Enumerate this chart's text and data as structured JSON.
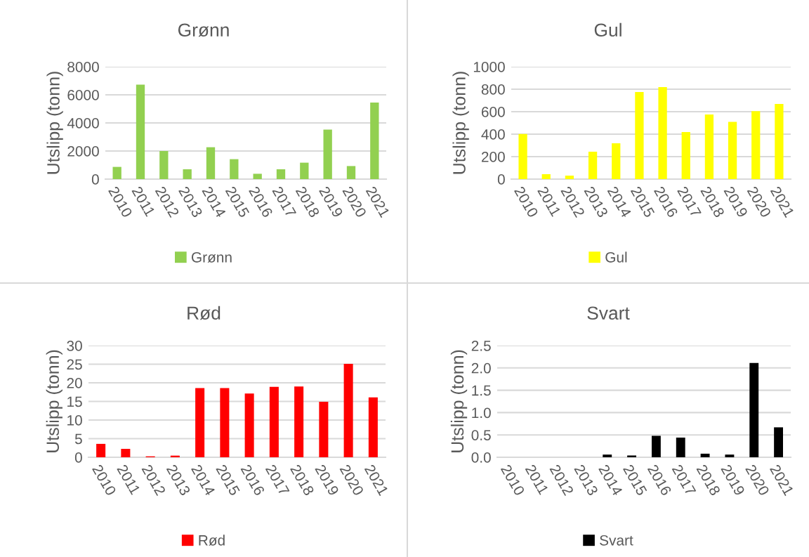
{
  "chart_data": [
    {
      "type": "bar",
      "title": "Grønn",
      "ylabel": "Utslipp (tonn)",
      "categories": [
        "2010",
        "2011",
        "2012",
        "2013",
        "2014",
        "2015",
        "2016",
        "2017",
        "2018",
        "2019",
        "2020",
        "2021"
      ],
      "series": [
        {
          "name": "Grønn",
          "color": "#92d050",
          "values": [
            870,
            6730,
            2000,
            700,
            2270,
            1420,
            380,
            700,
            1170,
            3530,
            930,
            5450
          ]
        }
      ],
      "ylim": [
        0,
        8000
      ],
      "yticks": [
        0,
        2000,
        4000,
        6000,
        8000
      ],
      "grid": "y",
      "legend": "bottom"
    },
    {
      "type": "bar",
      "title": "Gul",
      "ylabel": "Utslipp (tonn)",
      "categories": [
        "2010",
        "2011",
        "2012",
        "2013",
        "2014",
        "2015",
        "2016",
        "2017",
        "2018",
        "2019",
        "2020",
        "2021"
      ],
      "series": [
        {
          "name": "Gul",
          "color": "#ffff00",
          "values": [
            402,
            44,
            31,
            244,
            319,
            775,
            819,
            419,
            575,
            510,
            604,
            669
          ]
        }
      ],
      "ylim": [
        0,
        1000
      ],
      "yticks": [
        0,
        200,
        400,
        600,
        800,
        1000
      ],
      "grid": "y",
      "legend": "bottom"
    },
    {
      "type": "bar",
      "title": "Rød",
      "ylabel": "Utslipp (tonn)",
      "categories": [
        "2010",
        "2011",
        "2012",
        "2013",
        "2014",
        "2015",
        "2016",
        "2017",
        "2018",
        "2019",
        "2020",
        "2021"
      ],
      "series": [
        {
          "name": "Rød",
          "color": "#ff0000",
          "values": [
            3.6,
            2.25,
            0.25,
            0.44,
            18.6,
            18.6,
            17.1,
            18.9,
            19.0,
            14.9,
            25.1,
            16.1
          ]
        }
      ],
      "ylim": [
        0,
        30
      ],
      "yticks": [
        0,
        5,
        10,
        15,
        20,
        25,
        30
      ],
      "grid": "y",
      "legend": "bottom"
    },
    {
      "type": "bar",
      "title": "Svart",
      "ylabel": "Utslipp (tonn)",
      "categories": [
        "2010",
        "2011",
        "2012",
        "2013",
        "2014",
        "2015",
        "2016",
        "2017",
        "2018",
        "2019",
        "2020",
        "2021"
      ],
      "series": [
        {
          "name": "Svart",
          "color": "#000000",
          "values": [
            0,
            0,
            0,
            0,
            0.06,
            0.04,
            0.48,
            0.44,
            0.08,
            0.06,
            2.11,
            0.67
          ]
        }
      ],
      "ylim": [
        0,
        2.5
      ],
      "yticks": [
        {
          "value": 0,
          "label": "0.0"
        },
        {
          "value": 0.5,
          "label": "0.5"
        },
        {
          "value": 1,
          "label": "1.0"
        },
        {
          "value": 1.5,
          "label": "1.5"
        },
        {
          "value": 2,
          "label": "2.0"
        },
        {
          "value": 2.5,
          "label": "2.5"
        }
      ],
      "grid": "y",
      "legend": "bottom"
    }
  ]
}
